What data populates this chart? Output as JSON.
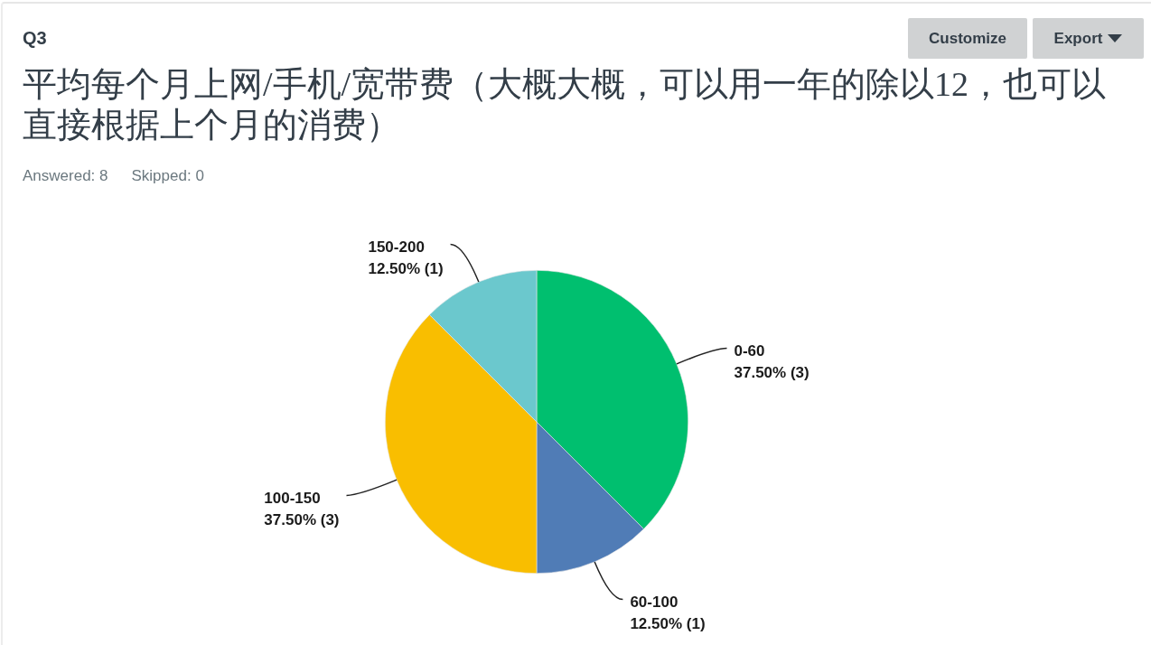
{
  "chart_data": {
    "type": "pie",
    "title": "平均每个月上网/手机/宽带费（大概大概，可以用一年的除以12，也可以直接根据上个月的消费）",
    "annotations": [
      "Q3",
      "Answered: 8",
      "Skipped: 0",
      "Customize",
      "Export"
    ],
    "categories": [
      "0-60",
      "60-100",
      "100-150",
      "150-200"
    ],
    "values": [
      37.5,
      12.5,
      37.5,
      12.5
    ],
    "value_labels": [
      "37.50% (3)",
      "12.50% (1)",
      "37.50% (3)",
      "12.50% (1)"
    ],
    "colors": [
      "#00bf6f",
      "#507cb6",
      "#f9be00",
      "#6bc8cd"
    ],
    "legend": false
  }
}
